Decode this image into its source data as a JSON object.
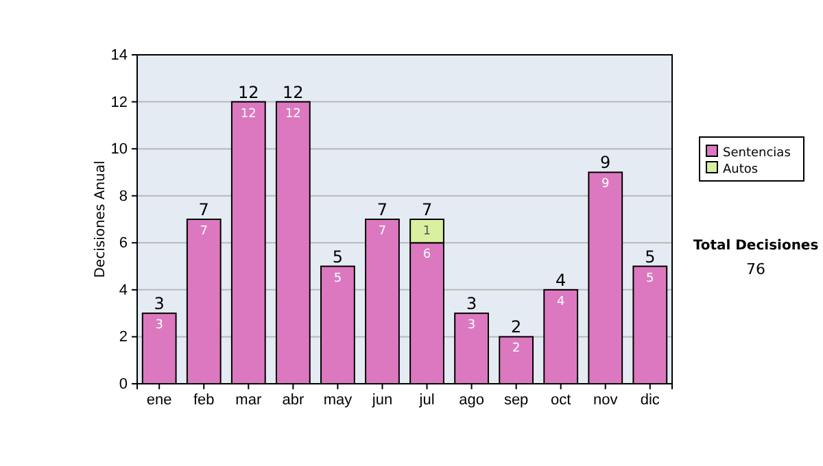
{
  "chart_data": {
    "type": "bar",
    "stacked": true,
    "ylabel": "Decisiones Anual",
    "categories": [
      "ene",
      "feb",
      "mar",
      "abr",
      "may",
      "jun",
      "jul",
      "ago",
      "sep",
      "oct",
      "nov",
      "dic"
    ],
    "series": [
      {
        "name": "Sentencias",
        "color": "#dc78c0",
        "values": [
          3,
          7,
          12,
          12,
          5,
          7,
          6,
          3,
          2,
          4,
          9,
          5
        ],
        "value_labels": [
          "3",
          "7",
          "12",
          "12",
          "5",
          "7",
          "6",
          "3",
          "2",
          "4",
          "9",
          "5"
        ]
      },
      {
        "name": "Autos",
        "color": "#d8f0a0",
        "values": [
          null,
          null,
          null,
          null,
          null,
          null,
          1,
          null,
          null,
          null,
          null,
          null
        ],
        "value_labels": [
          null,
          null,
          null,
          null,
          null,
          null,
          "1",
          null,
          null,
          null,
          null,
          null
        ]
      }
    ],
    "totals": [
      "3",
      "7",
      "12",
      "12",
      "5",
      "7",
      "7",
      "3",
      "2",
      "4",
      "9",
      "5"
    ],
    "ylim": [
      0,
      14
    ],
    "yticks": [
      0,
      2,
      4,
      6,
      8,
      10,
      12,
      14
    ],
    "grid": "y",
    "legend": "right",
    "annotations": [
      "Total Decisiones",
      "76"
    ]
  }
}
